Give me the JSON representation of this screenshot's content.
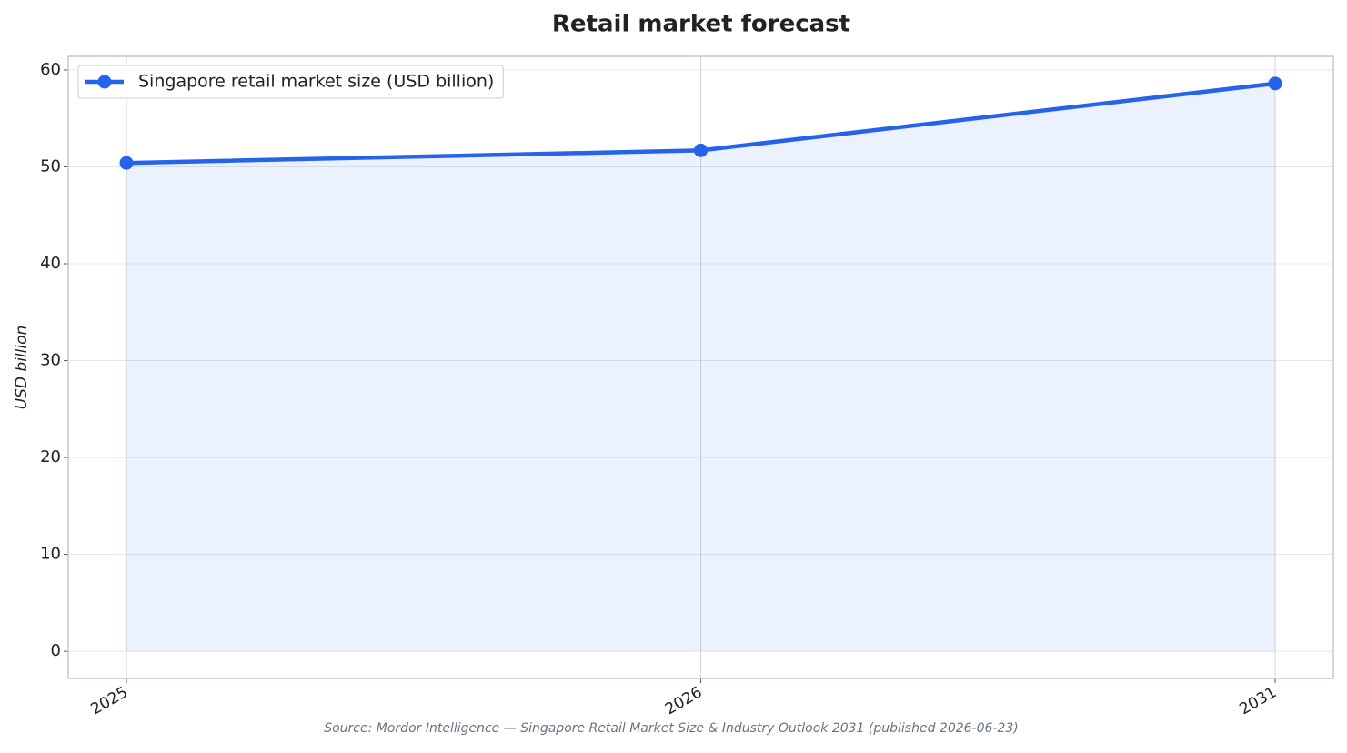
{
  "chart_data": {
    "type": "line",
    "title": "Retail market forecast",
    "y_label": "USD billion",
    "source": "Source: Mordor Intelligence — Singapore Retail Market Size & Industry Outlook 2031 (published 2026-06-23)",
    "categories": [
      "2025",
      "2026",
      "2031"
    ],
    "series": [
      {
        "name": "Singapore retail market size (USD billion)",
        "color": "#2563eb",
        "values": [
          50.4,
          51.7,
          58.6
        ]
      }
    ],
    "ylim": [
      -2.8,
      61.4
    ],
    "yticks": [
      0,
      10,
      20,
      30,
      40,
      50,
      60
    ],
    "grid": true,
    "area_fill": true,
    "legend": "upper-left"
  }
}
